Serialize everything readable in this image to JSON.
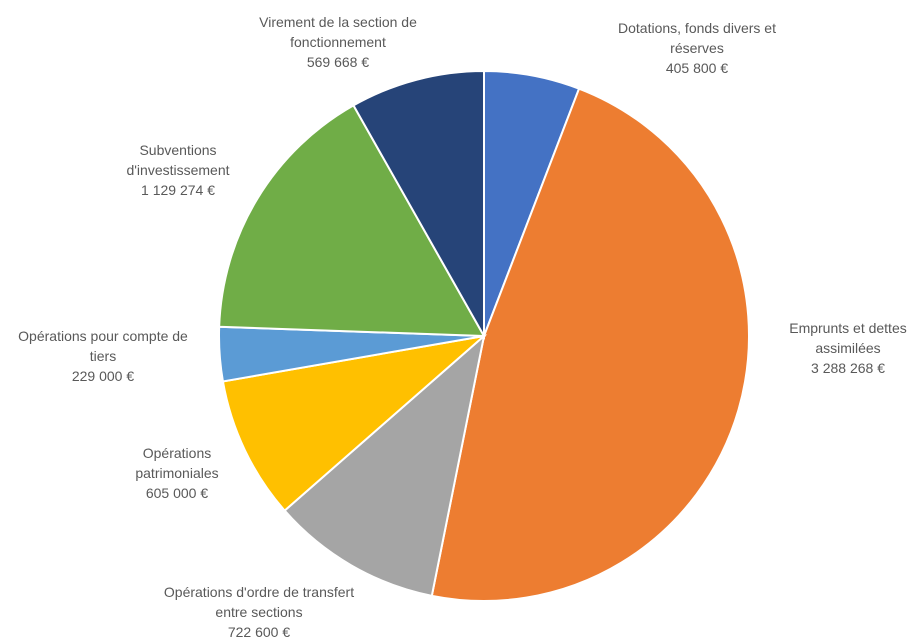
{
  "chart_data": {
    "type": "pie",
    "categories": [
      "Dotations, fonds divers et réserves",
      "Emprunts et dettes assimilées",
      "Opérations d'ordre de transfert entre sections",
      "Opérations patrimoniales",
      "Opérations pour compte de tiers",
      "Subventions d'investissement",
      "Virement de la section de fonctionnement"
    ],
    "values": [
      405800,
      3288268,
      722600,
      605000,
      229000,
      1129274,
      569668
    ],
    "value_labels": [
      "405 800 €",
      "3 288 268 €",
      "722 600 €",
      "605 000 €",
      "229 000 €",
      "1 129 274 €",
      "569 668 €"
    ],
    "colors": [
      "#4472c4",
      "#ed7d31",
      "#a5a5a5",
      "#ffc000",
      "#5b9bd5",
      "#70ad47",
      "#264478"
    ]
  }
}
